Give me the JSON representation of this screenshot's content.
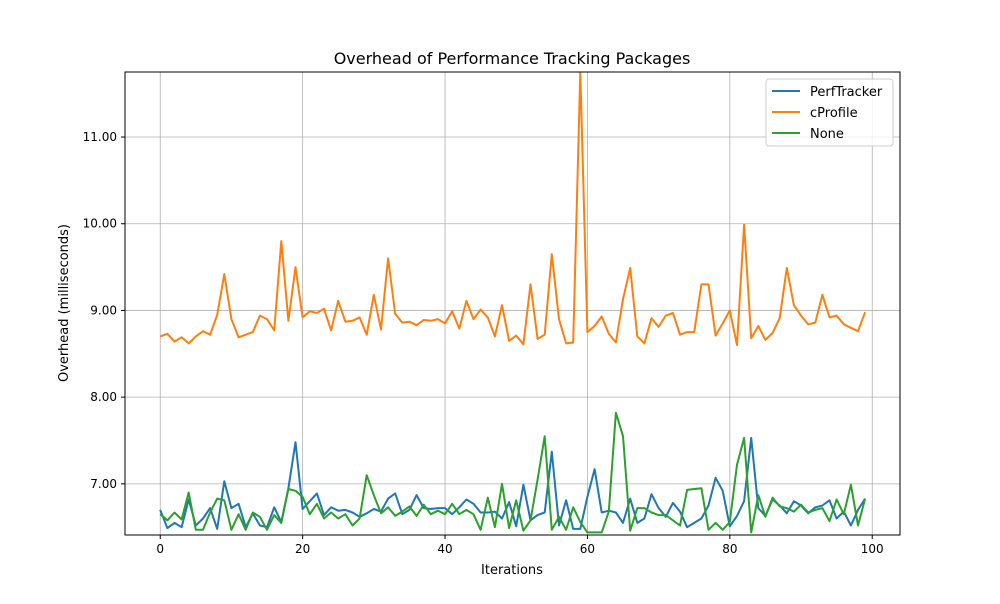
{
  "chart_data": {
    "type": "line",
    "title": "Overhead of Performance Tracking Packages",
    "xlabel": "Iterations",
    "ylabel": "Overhead (milliseconds)",
    "xlim": [
      -4.95,
      103.9
    ],
    "ylim": [
      6.41,
      11.75
    ],
    "xticks": [
      0,
      20,
      40,
      60,
      80,
      100
    ],
    "yticks": [
      7,
      8,
      9,
      10,
      11
    ],
    "ytick_labels": [
      "7.00",
      "8.00",
      "9.00",
      "10.00",
      "11.00"
    ],
    "grid": true,
    "legend_position": "top-right",
    "series": [
      {
        "name": "PerfTracker",
        "color": "#1f77b4",
        "values": [
          6.7,
          6.49,
          6.55,
          6.5,
          6.82,
          6.52,
          6.6,
          6.72,
          6.48,
          7.03,
          6.72,
          6.77,
          6.5,
          6.66,
          6.52,
          6.5,
          6.73,
          6.56,
          6.95,
          7.48,
          6.71,
          6.8,
          6.89,
          6.64,
          6.73,
          6.69,
          6.7,
          6.67,
          6.62,
          6.66,
          6.71,
          6.68,
          6.83,
          6.89,
          6.65,
          6.7,
          6.87,
          6.72,
          6.71,
          6.72,
          6.72,
          6.65,
          6.73,
          6.82,
          6.77,
          6.67,
          6.67,
          6.68,
          6.6,
          6.79,
          6.51,
          6.99,
          6.58,
          6.64,
          6.67,
          7.37,
          6.52,
          6.81,
          6.48,
          6.48,
          6.85,
          7.17,
          6.67,
          6.69,
          6.67,
          6.55,
          6.83,
          6.55,
          6.6,
          6.88,
          6.72,
          6.62,
          6.78,
          6.68,
          6.5,
          6.55,
          6.6,
          6.75,
          7.07,
          6.92,
          6.51,
          6.63,
          6.8,
          7.53,
          6.72,
          6.63,
          6.82,
          6.75,
          6.66,
          6.8,
          6.75,
          6.66,
          6.73,
          6.75,
          6.81,
          6.6,
          6.68,
          6.52,
          6.7,
          6.83
        ]
      },
      {
        "name": "cProfile",
        "color": "#ff7f0e",
        "values": [
          8.7,
          8.73,
          8.64,
          8.69,
          8.62,
          8.7,
          8.76,
          8.72,
          8.95,
          9.42,
          8.9,
          8.69,
          8.72,
          8.75,
          8.94,
          8.9,
          8.77,
          9.8,
          8.88,
          9.5,
          8.92,
          8.99,
          8.97,
          9.02,
          8.77,
          9.11,
          8.87,
          8.88,
          8.92,
          8.72,
          9.18,
          8.78,
          9.6,
          8.96,
          8.86,
          8.87,
          8.83,
          8.89,
          8.88,
          8.9,
          8.85,
          8.99,
          8.79,
          9.11,
          8.9,
          9.01,
          8.92,
          8.7,
          9.06,
          8.65,
          8.71,
          8.61,
          9.3,
          8.67,
          8.72,
          9.65,
          8.9,
          8.62,
          8.63,
          11.75,
          8.75,
          8.82,
          8.93,
          8.73,
          8.63,
          9.13,
          9.49,
          8.7,
          8.62,
          8.91,
          8.81,
          8.94,
          8.97,
          8.72,
          8.75,
          8.75,
          9.3,
          9.3,
          8.71,
          8.85,
          9.0,
          8.6,
          9.99,
          8.68,
          8.82,
          8.66,
          8.74,
          8.91,
          9.49,
          9.06,
          8.94,
          8.84,
          8.86,
          9.18,
          8.92,
          8.94,
          8.84,
          8.8,
          8.76,
          8.98
        ]
      },
      {
        "name": "None",
        "color": "#2ca02c",
        "values": [
          6.65,
          6.58,
          6.67,
          6.59,
          6.9,
          6.47,
          6.47,
          6.67,
          6.83,
          6.81,
          6.47,
          6.65,
          6.47,
          6.67,
          6.62,
          6.47,
          6.64,
          6.55,
          6.94,
          6.92,
          6.85,
          6.65,
          6.77,
          6.6,
          6.67,
          6.6,
          6.65,
          6.52,
          6.6,
          7.1,
          6.87,
          6.66,
          6.73,
          6.63,
          6.68,
          6.74,
          6.63,
          6.76,
          6.65,
          6.69,
          6.65,
          6.77,
          6.65,
          6.7,
          6.65,
          6.47,
          6.84,
          6.5,
          7.0,
          6.49,
          6.81,
          6.46,
          6.58,
          7.05,
          7.55,
          6.47,
          6.62,
          6.47,
          6.73,
          6.56,
          6.44,
          6.44,
          6.44,
          6.68,
          7.82,
          7.55,
          6.46,
          6.72,
          6.72,
          6.67,
          6.64,
          6.64,
          6.58,
          6.52,
          6.93,
          6.94,
          6.95,
          6.47,
          6.55,
          6.47,
          6.56,
          7.22,
          7.53,
          6.44,
          6.87,
          6.62,
          6.84,
          6.74,
          6.72,
          6.68,
          6.76,
          6.67,
          6.7,
          6.72,
          6.57,
          6.82,
          6.65,
          6.99,
          6.52,
          6.83
        ]
      }
    ]
  }
}
